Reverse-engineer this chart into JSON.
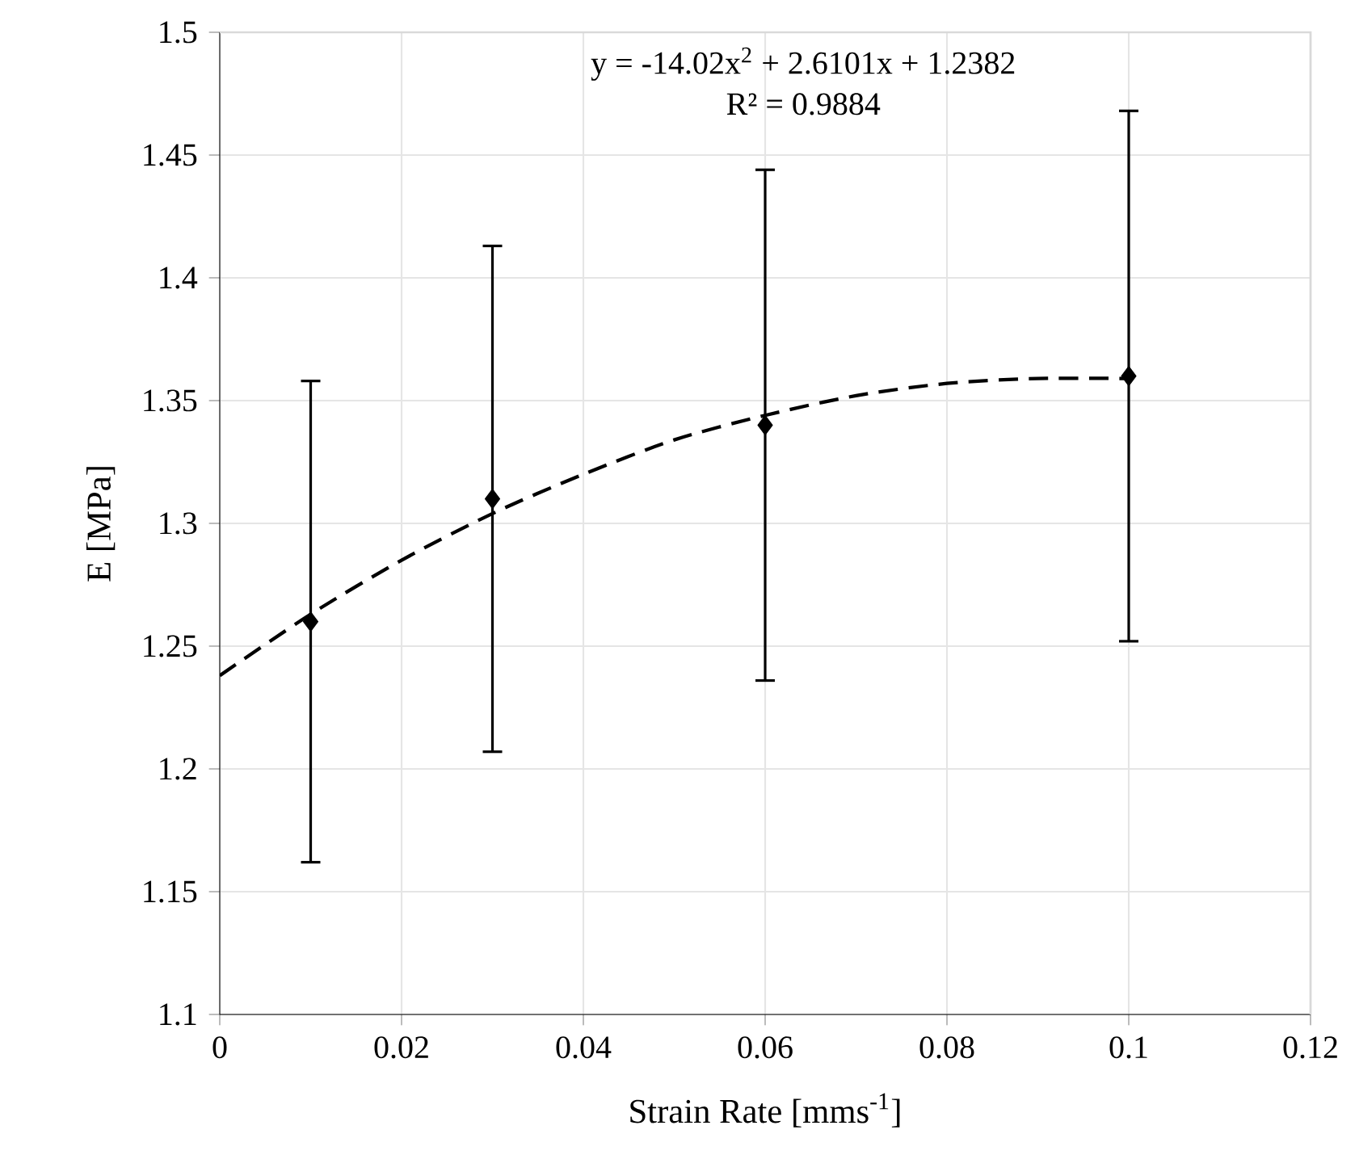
{
  "chart_data": {
    "type": "scatter",
    "xlabel": "Strain Rate [mms$^{-1}$]",
    "ylabel": "E [MPa]",
    "annotations": [
      "y = -14.02x$^{2}$ + 2.6101x + 1.2382",
      "R² = 0.9884"
    ],
    "xlim": [
      0,
      0.12
    ],
    "xticks": [
      0,
      0.02,
      0.04,
      0.06,
      0.08,
      0.1,
      0.12
    ],
    "ylim": [
      1.1,
      1.5
    ],
    "yticks": [
      1.1,
      1.15,
      1.2,
      1.25,
      1.3,
      1.35,
      1.4,
      1.45,
      1.5
    ],
    "grid": true,
    "series": [
      {
        "color": "#000000",
        "marker": "diamond",
        "x": [
          0.01,
          0.03,
          0.06,
          0.1
        ],
        "values": [
          1.26,
          1.31,
          1.34,
          1.36
        ],
        "errors": [
          0.098,
          0.103,
          0.104,
          0.108
        ]
      },
      {
        "type": "line",
        "color": "#000000",
        "marker": "none",
        "line_style": "dashed",
        "x": [
          0,
          0.01,
          0.02,
          0.03,
          0.04,
          0.05,
          0.06,
          0.07,
          0.08,
          0.09,
          0.1
        ],
        "values": [
          1.238,
          1.263,
          1.285,
          1.304,
          1.32,
          1.334,
          1.344,
          1.352,
          1.357,
          1.359,
          1.359
        ]
      }
    ]
  }
}
